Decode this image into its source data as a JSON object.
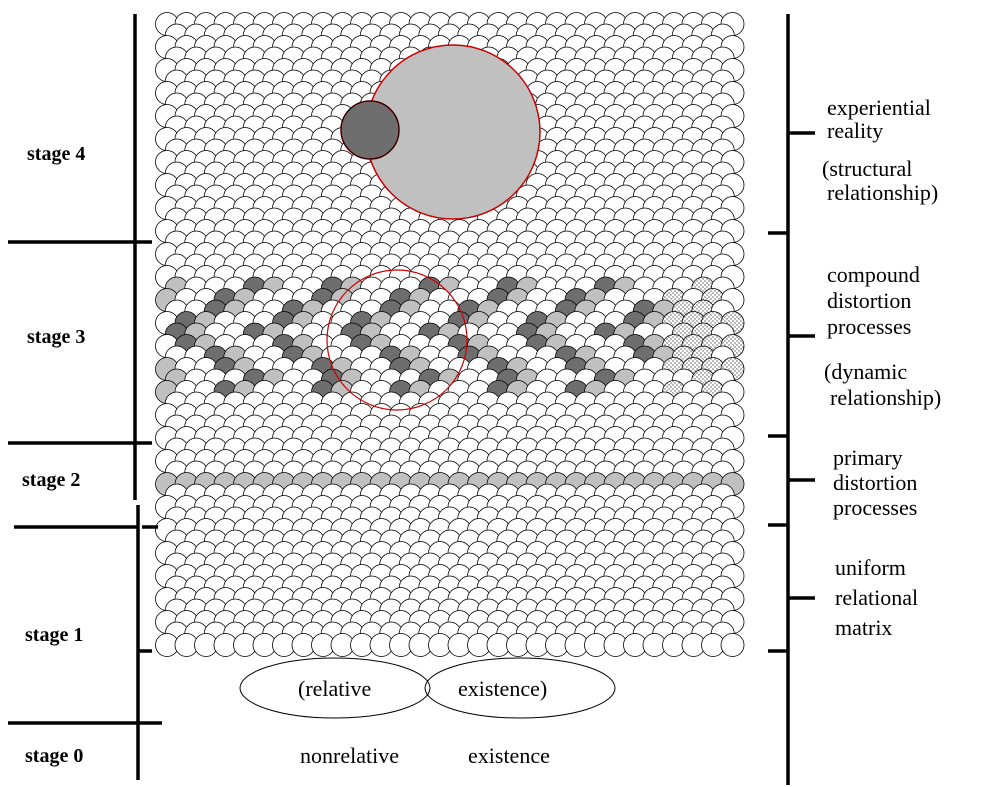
{
  "stages": [
    {
      "id": "stage-4",
      "label": "stage 4"
    },
    {
      "id": "stage-3",
      "label": "stage 3"
    },
    {
      "id": "stage-2",
      "label": "stage 2"
    },
    {
      "id": "stage-1",
      "label": "stage 1"
    },
    {
      "id": "stage-0",
      "label": "stage 0"
    }
  ],
  "right_labels": {
    "stage4": [
      "experiential",
      "reality",
      "(structural",
      "relationship)"
    ],
    "stage3": [
      "compound",
      "distortion",
      "processes",
      "(dynamic",
      "relationship)"
    ],
    "stage2": [
      "primary",
      "distortion",
      "processes"
    ],
    "stage1": [
      "uniform",
      "relational",
      "matrix"
    ]
  },
  "bottom": {
    "relative": "(relative",
    "existence_paren": "existence)",
    "nonrelative": "nonrelative",
    "existence": "existence"
  },
  "colors": {
    "outline": "#000000",
    "dark_gray": "#6e6e6e",
    "light_gray": "#c0c0c0",
    "highlight_red": "#cc0000",
    "white": "#ffffff"
  }
}
